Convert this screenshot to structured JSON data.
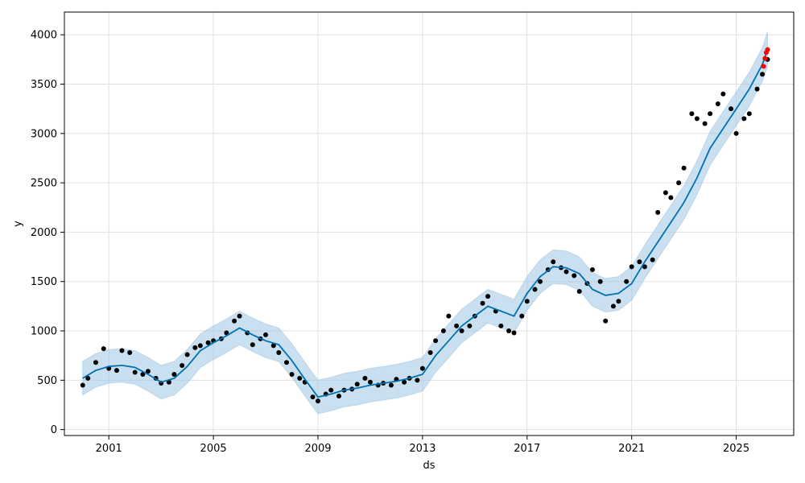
{
  "chart_data": {
    "type": "line",
    "title": "",
    "xlabel": "ds",
    "ylabel": "y",
    "xlim": [
      1999.3,
      2027.2
    ],
    "ylim": [
      -60,
      4230
    ],
    "grid": true,
    "x_ticks": [
      2001,
      2005,
      2009,
      2013,
      2017,
      2021,
      2025
    ],
    "x_tick_labels": [
      "2001",
      "2005",
      "2009",
      "2013",
      "2017",
      "2021",
      "2025"
    ],
    "y_ticks": [
      0,
      500,
      1000,
      1500,
      2000,
      2500,
      3000,
      3500,
      4000
    ],
    "y_tick_labels": [
      "0",
      "500",
      "1000",
      "1500",
      "2000",
      "2500",
      "3000",
      "3500",
      "4000"
    ],
    "colors": {
      "observed": "#000000",
      "forecast_line": "#0072B2",
      "uncertainty_band": "#9fc7e3",
      "recent_points": "#ff0000",
      "grid": "#e0e0e0"
    },
    "series": [
      {
        "kind": "observed",
        "x": [
          2000.0,
          2000.2,
          2000.5,
          2000.8,
          2001.0,
          2001.3,
          2001.5,
          2001.8,
          2002.0,
          2002.3,
          2002.5,
          2002.8,
          2003.0,
          2003.3,
          2003.5,
          2003.8,
          2004.0,
          2004.3,
          2004.5,
          2004.8,
          2005.0,
          2005.3,
          2005.5,
          2005.8,
          2006.0,
          2006.3,
          2006.5,
          2006.8,
          2007.0,
          2007.3,
          2007.5,
          2007.8,
          2008.0,
          2008.3,
          2008.5,
          2008.8,
          2009.0,
          2009.3,
          2009.5,
          2009.8,
          2010.0,
          2010.3,
          2010.5,
          2010.8,
          2011.0,
          2011.3,
          2011.5,
          2011.8,
          2012.0,
          2012.3,
          2012.5,
          2012.8,
          2013.0,
          2013.3,
          2013.5,
          2013.8,
          2014.0,
          2014.3,
          2014.5,
          2014.8,
          2015.0,
          2015.3,
          2015.5,
          2015.8,
          2016.0,
          2016.3,
          2016.5,
          2016.8,
          2017.0,
          2017.3,
          2017.5,
          2017.8,
          2018.0,
          2018.3,
          2018.5,
          2018.8,
          2019.0,
          2019.3,
          2019.5,
          2019.8,
          2020.0,
          2020.3,
          2020.5,
          2020.8,
          2021.0,
          2021.3,
          2021.5,
          2021.8,
          2022.0,
          2022.3,
          2022.5,
          2022.8,
          2023.0,
          2023.3,
          2023.5,
          2023.8,
          2024.0,
          2024.3,
          2024.5,
          2024.8,
          2025.0,
          2025.3,
          2025.5,
          2025.8,
          2026.0,
          2026.2
        ],
        "y": [
          450,
          520,
          680,
          820,
          620,
          600,
          800,
          780,
          580,
          560,
          590,
          520,
          470,
          480,
          560,
          650,
          760,
          830,
          850,
          880,
          900,
          920,
          980,
          1100,
          1150,
          980,
          860,
          920,
          960,
          850,
          780,
          680,
          560,
          520,
          480,
          330,
          290,
          360,
          400,
          340,
          400,
          410,
          460,
          520,
          480,
          450,
          470,
          450,
          510,
          480,
          520,
          500,
          620,
          780,
          900,
          1000,
          1150,
          1050,
          1000,
          1050,
          1150,
          1280,
          1350,
          1200,
          1050,
          1000,
          980,
          1150,
          1300,
          1420,
          1500,
          1620,
          1700,
          1640,
          1600,
          1560,
          1400,
          1480,
          1620,
          1500,
          1100,
          1250,
          1300,
          1500,
          1650,
          1700,
          1650,
          1720,
          2200,
          2400,
          2350,
          2500,
          2650,
          3200,
          3150,
          3100,
          3200,
          3300,
          3400,
          3250,
          3000,
          3150,
          3200,
          3450,
          3600,
          3750
        ]
      },
      {
        "kind": "recent",
        "x": [
          2026.05,
          2026.1,
          2026.15,
          2026.2
        ],
        "y": [
          3680,
          3760,
          3820,
          3850
        ]
      },
      {
        "kind": "trend",
        "x": [
          2000.0,
          2000.5,
          2001.0,
          2001.5,
          2002.0,
          2002.5,
          2003.0,
          2003.5,
          2004.0,
          2004.5,
          2005.0,
          2005.5,
          2006.0,
          2006.5,
          2007.0,
          2007.5,
          2008.0,
          2008.5,
          2009.0,
          2009.5,
          2010.0,
          2010.5,
          2011.0,
          2011.5,
          2012.0,
          2012.5,
          2013.0,
          2013.5,
          2014.0,
          2014.5,
          2015.0,
          2015.5,
          2016.0,
          2016.5,
          2017.0,
          2017.5,
          2018.0,
          2018.5,
          2019.0,
          2019.5,
          2020.0,
          2020.5,
          2021.0,
          2021.5,
          2022.0,
          2022.5,
          2023.0,
          2023.5,
          2024.0,
          2024.5,
          2025.0,
          2025.5,
          2026.0,
          2026.2
        ],
        "y": [
          520,
          600,
          640,
          650,
          630,
          560,
          480,
          520,
          640,
          800,
          880,
          950,
          1030,
          960,
          900,
          860,
          700,
          510,
          330,
          360,
          400,
          420,
          450,
          470,
          490,
          520,
          560,
          750,
          900,
          1050,
          1150,
          1250,
          1200,
          1150,
          1380,
          1550,
          1650,
          1640,
          1580,
          1420,
          1360,
          1380,
          1480,
          1700,
          1900,
          2100,
          2300,
          2550,
          2850,
          3050,
          3250,
          3450,
          3700,
          3850
        ]
      },
      {
        "kind": "trend_band_upper",
        "x": [
          2000.0,
          2000.5,
          2001.0,
          2001.5,
          2002.0,
          2002.5,
          2003.0,
          2003.5,
          2004.0,
          2004.5,
          2005.0,
          2005.5,
          2006.0,
          2006.5,
          2007.0,
          2007.5,
          2008.0,
          2008.5,
          2009.0,
          2009.5,
          2010.0,
          2010.5,
          2011.0,
          2011.5,
          2012.0,
          2012.5,
          2013.0,
          2013.5,
          2014.0,
          2014.5,
          2015.0,
          2015.5,
          2016.0,
          2016.5,
          2017.0,
          2017.5,
          2018.0,
          2018.5,
          2019.0,
          2019.5,
          2020.0,
          2020.5,
          2021.0,
          2021.5,
          2022.0,
          2022.5,
          2023.0,
          2023.5,
          2024.0,
          2024.5,
          2025.0,
          2025.5,
          2026.0,
          2026.2
        ],
        "y": [
          690,
          770,
          810,
          820,
          800,
          730,
          650,
          690,
          810,
          970,
          1050,
          1120,
          1200,
          1130,
          1070,
          1030,
          870,
          680,
          500,
          530,
          570,
          590,
          620,
          640,
          660,
          690,
          730,
          920,
          1070,
          1220,
          1320,
          1420,
          1370,
          1320,
          1550,
          1720,
          1820,
          1810,
          1750,
          1590,
          1530,
          1550,
          1650,
          1870,
          2070,
          2270,
          2470,
          2720,
          3020,
          3220,
          3420,
          3620,
          3870,
          4030
        ]
      },
      {
        "kind": "trend_band_lower",
        "x": [
          2000.0,
          2000.5,
          2001.0,
          2001.5,
          2002.0,
          2002.5,
          2003.0,
          2003.5,
          2004.0,
          2004.5,
          2005.0,
          2005.5,
          2006.0,
          2006.5,
          2007.0,
          2007.5,
          2008.0,
          2008.5,
          2009.0,
          2009.5,
          2010.0,
          2010.5,
          2011.0,
          2011.5,
          2012.0,
          2012.5,
          2013.0,
          2013.5,
          2014.0,
          2014.5,
          2015.0,
          2015.5,
          2016.0,
          2016.5,
          2017.0,
          2017.5,
          2018.0,
          2018.5,
          2019.0,
          2019.5,
          2020.0,
          2020.5,
          2021.0,
          2021.5,
          2022.0,
          2022.5,
          2023.0,
          2023.5,
          2024.0,
          2024.5,
          2025.0,
          2025.5,
          2026.0,
          2026.2
        ],
        "y": [
          350,
          430,
          470,
          480,
          460,
          390,
          310,
          350,
          470,
          630,
          710,
          780,
          860,
          790,
          730,
          690,
          530,
          340,
          160,
          190,
          230,
          250,
          280,
          300,
          320,
          350,
          390,
          580,
          730,
          880,
          980,
          1080,
          1030,
          980,
          1210,
          1380,
          1480,
          1470,
          1410,
          1250,
          1190,
          1210,
          1310,
          1530,
          1730,
          1930,
          2130,
          2380,
          2680,
          2880,
          3080,
          3280,
          3530,
          3680
        ]
      }
    ]
  }
}
